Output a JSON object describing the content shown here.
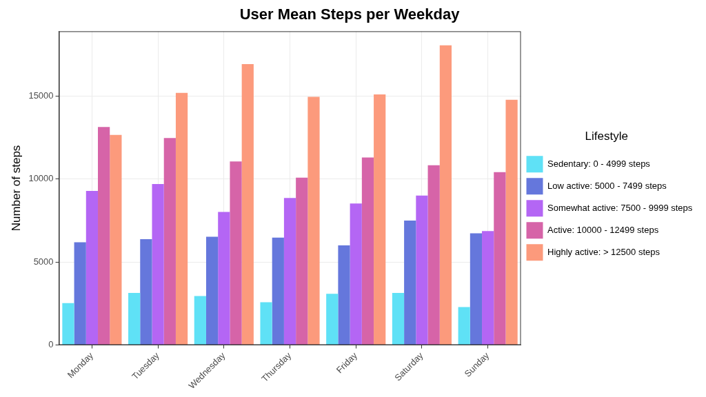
{
  "chart_data": {
    "type": "bar",
    "title": "User Mean Steps per Weekday",
    "y_label": "Number of steps",
    "legend_title": "Lifestyle",
    "legend": "right",
    "grid": true,
    "categories": [
      "Monday",
      "Tuesday",
      "Wednesday",
      "Thursday",
      "Friday",
      "Saturday",
      "Sunday"
    ],
    "series": [
      {
        "name": "Sedentary: 0 - 4999 steps",
        "color": "#5fe1f6",
        "values": [
          2530,
          3140,
          2950,
          2580,
          3090,
          3140,
          2290
        ]
      },
      {
        "name": "Low active: 5000 - 7499 steps",
        "color": "#6577dc",
        "values": [
          6190,
          6380,
          6520,
          6470,
          6000,
          7500,
          6730
        ]
      },
      {
        "name": "Somewhat active: 7500 - 9999 steps",
        "color": "#b466f4",
        "values": [
          9280,
          9700,
          8020,
          8860,
          8530,
          9000,
          6870
        ]
      },
      {
        "name": "Active: 10000 - 12499 steps",
        "color": "#d664a8",
        "values": [
          13130,
          12470,
          11060,
          10080,
          11300,
          10830,
          10420
        ]
      },
      {
        "name": "Highly active: > 12500 steps",
        "color": "#fc9a7c",
        "values": [
          12660,
          15190,
          16920,
          14950,
          15100,
          18050,
          14770
        ]
      }
    ],
    "ylim": [
      0,
      18900
    ],
    "yticks": [
      0,
      5000,
      10000,
      15000
    ]
  }
}
